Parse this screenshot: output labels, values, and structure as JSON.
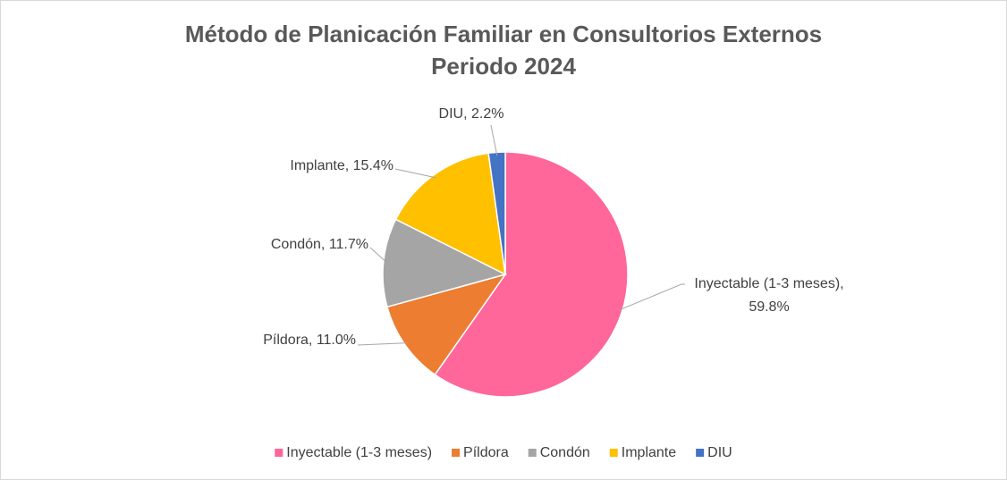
{
  "chart_data": {
    "type": "pie",
    "title": [
      "Método de Planicación Familiar en Consultorios Externos",
      "Periodo 2024"
    ],
    "categories": [
      "Inyectable (1-3 meses)",
      "Píldora",
      "Condón",
      "Implante",
      "DIU"
    ],
    "values": [
      59.8,
      11.0,
      11.7,
      15.4,
      2.2
    ],
    "value_labels": [
      "Inyectable (1-3 meses), 59.8%",
      "Píldora, 11.0%",
      "Condón, 11.7%",
      "Implante, 15.4%",
      "DIU, 2.2%"
    ],
    "colors": [
      "#FF6699",
      "#ED7D31",
      "#A5A5A5",
      "#FFC000",
      "#4472C4"
    ],
    "legend": "bottom"
  }
}
